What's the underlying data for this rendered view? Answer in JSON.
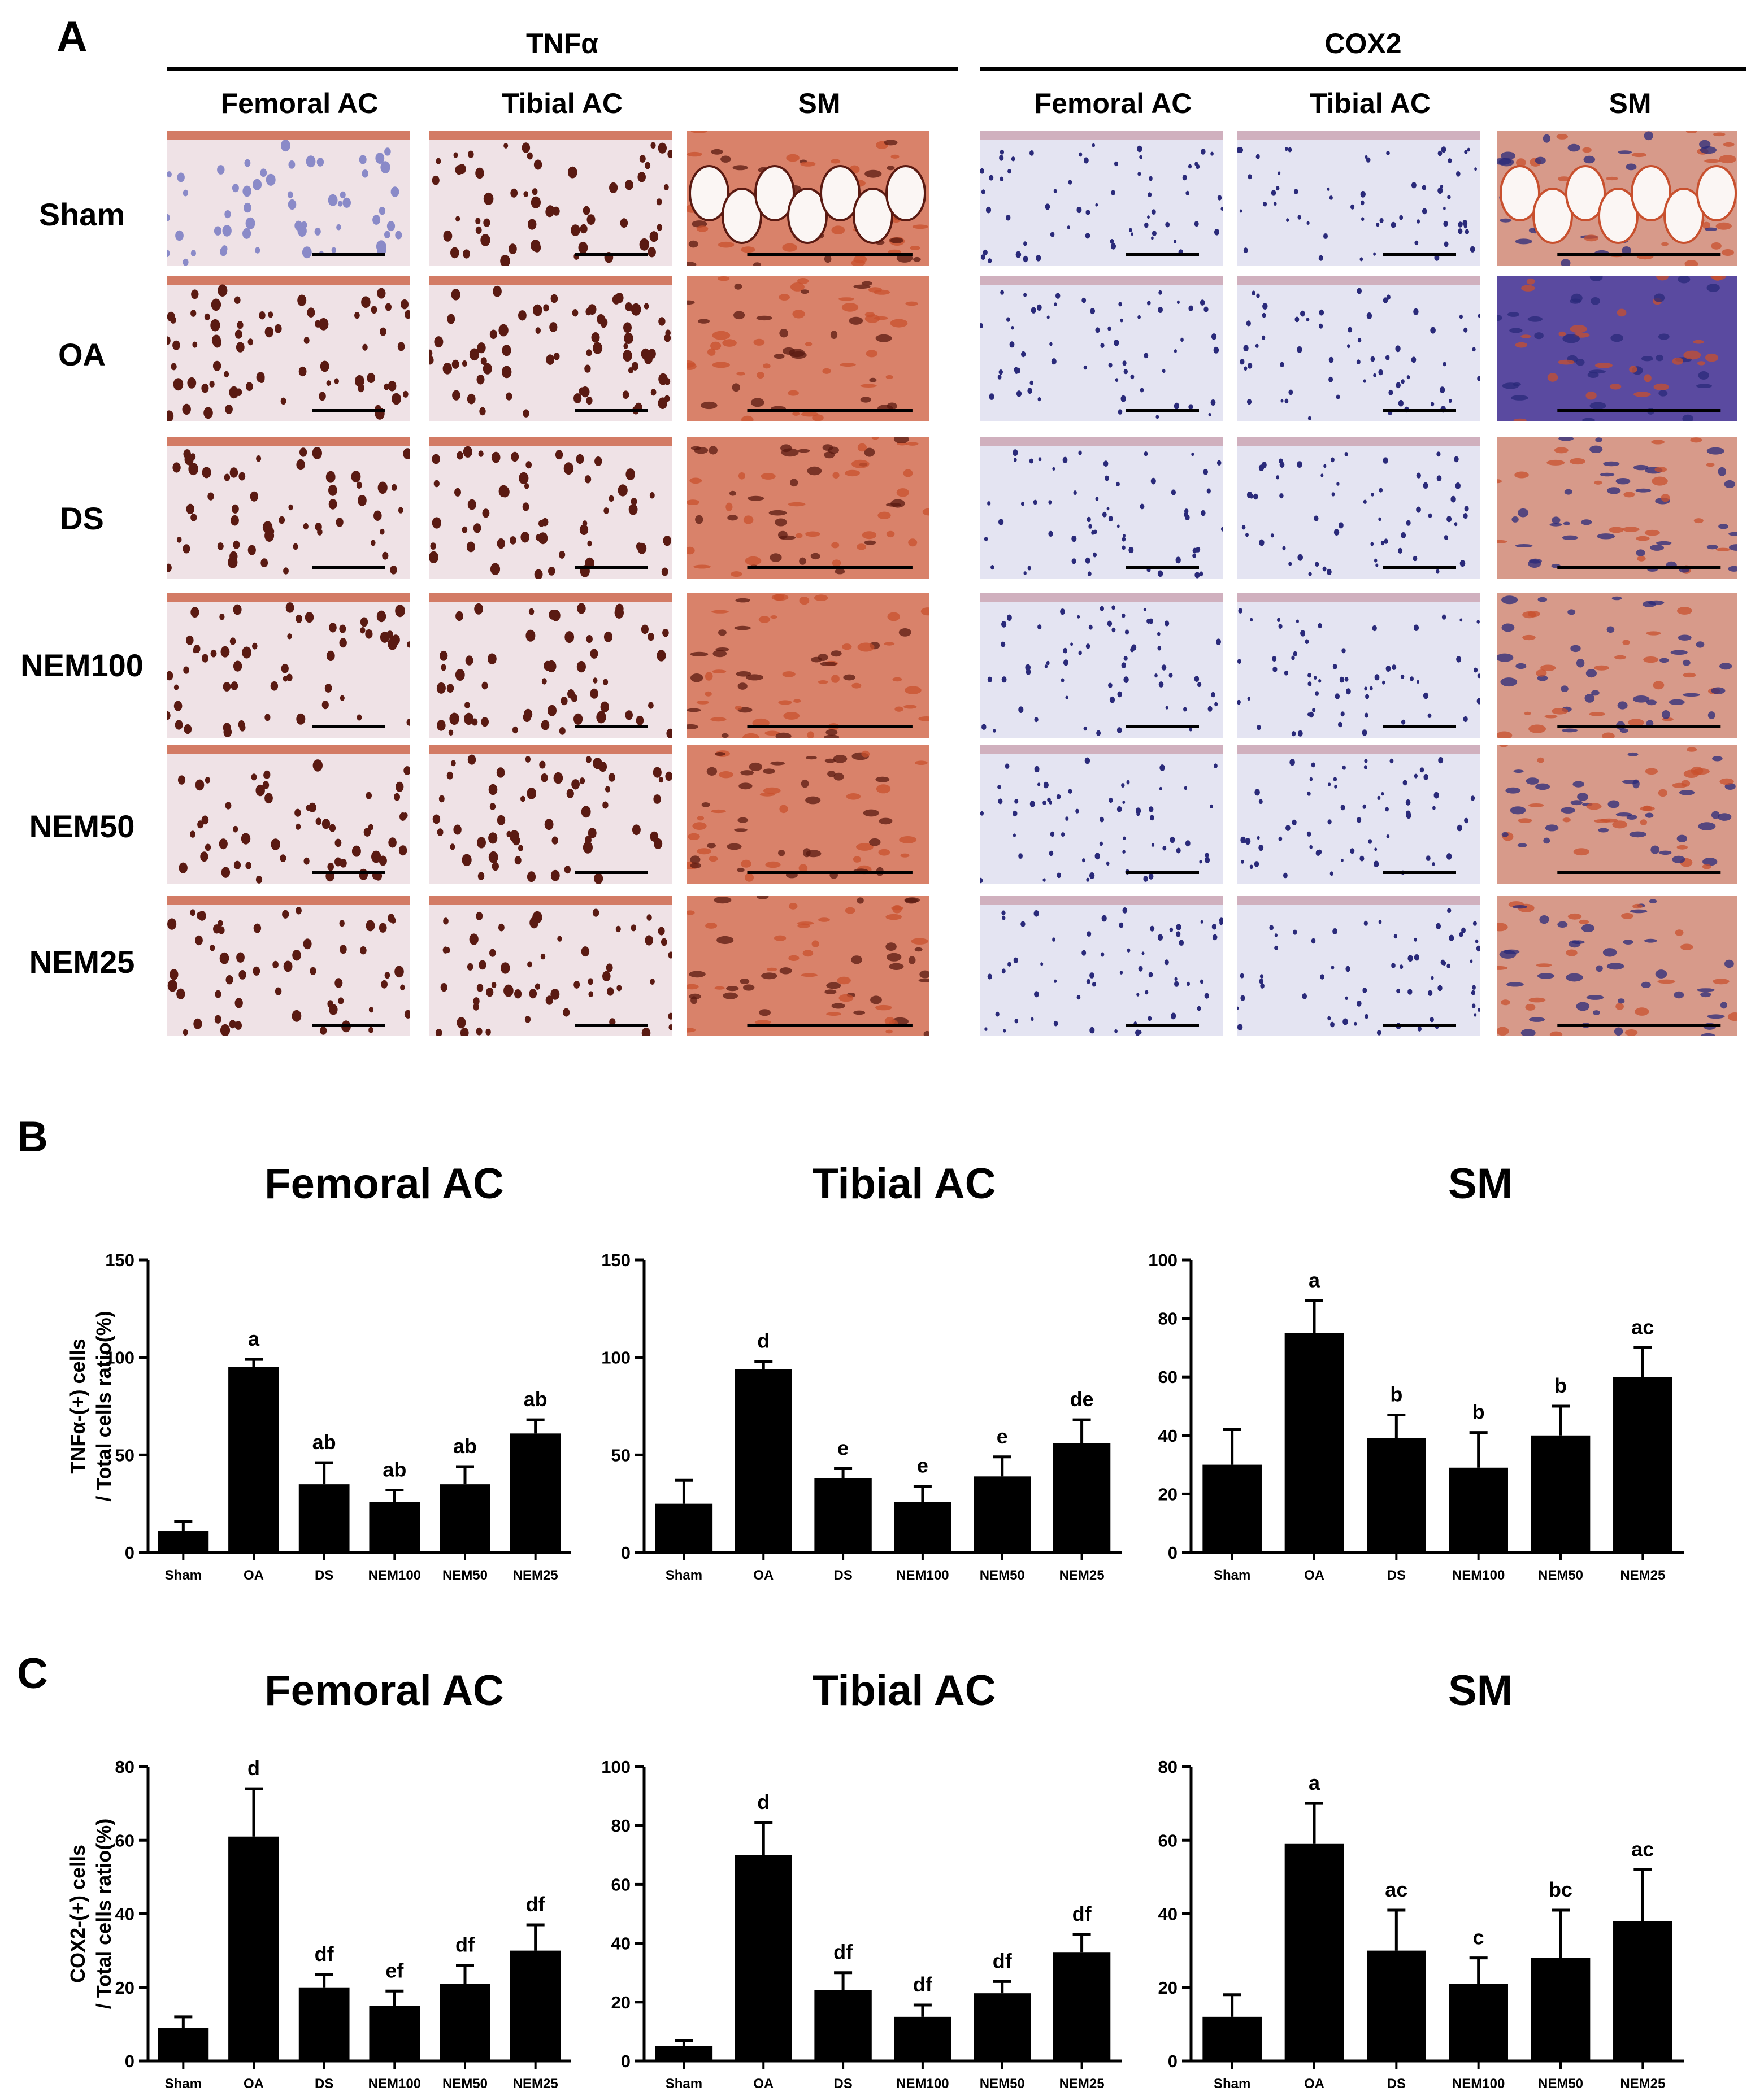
{
  "panels": {
    "A": "A",
    "B": "B",
    "C": "C"
  },
  "panel_a": {
    "markers": [
      "TNFα",
      "COX2"
    ],
    "columns": [
      "Femoral AC",
      "Tibial AC",
      "SM"
    ],
    "rows": [
      "Sham",
      "OA",
      "DS",
      "NEM100",
      "NEM50",
      "NEM25"
    ],
    "stain_colors": {
      "brown": "#5a1a12",
      "red": "#c8502e",
      "pink": "#e8c8c8",
      "blue": "#8a8ac8",
      "navy": "#2a2a7a"
    }
  },
  "chart_data": [
    {
      "id": "B-femoral",
      "type": "bar",
      "title": "Femoral AC",
      "ylabel": "TNFα-(+) cells\n/ Total cells ratio(%)",
      "categories": [
        "Sham",
        "OA",
        "DS",
        "NEM100",
        "NEM50",
        "NEM25"
      ],
      "ylim": [
        0,
        150
      ],
      "yticks": [
        0,
        50,
        100,
        150
      ],
      "values": [
        11,
        95,
        35,
        26,
        35,
        61
      ],
      "errors": [
        5,
        4,
        11,
        6,
        9,
        7
      ],
      "labels": [
        "",
        "a",
        "ab",
        "ab",
        "ab",
        "ab"
      ]
    },
    {
      "id": "B-tibial",
      "type": "bar",
      "title": "Tibial AC",
      "ylabel": "",
      "categories": [
        "Sham",
        "OA",
        "DS",
        "NEM100",
        "NEM50",
        "NEM25"
      ],
      "ylim": [
        0,
        150
      ],
      "yticks": [
        0,
        50,
        100,
        150
      ],
      "values": [
        25,
        94,
        38,
        26,
        39,
        56
      ],
      "errors": [
        12,
        4,
        5,
        8,
        10,
        12
      ],
      "labels": [
        "",
        "d",
        "e",
        "e",
        "e",
        "de"
      ]
    },
    {
      "id": "B-sm",
      "type": "bar",
      "title": "SM",
      "ylabel": "",
      "categories": [
        "Sham",
        "OA",
        "DS",
        "NEM100",
        "NEM50",
        "NEM25"
      ],
      "ylim": [
        0,
        100
      ],
      "yticks": [
        0,
        20,
        40,
        60,
        80,
        100
      ],
      "values": [
        30,
        75,
        39,
        29,
        40,
        60
      ],
      "errors": [
        12,
        11,
        8,
        12,
        10,
        10
      ],
      "labels": [
        "",
        "a",
        "b",
        "b",
        "b",
        "ac"
      ]
    },
    {
      "id": "C-femoral",
      "type": "bar",
      "title": "Femoral AC",
      "ylabel": "COX2-(+) cells\n/ Total cells ratio(%)",
      "categories": [
        "Sham",
        "OA",
        "DS",
        "NEM100",
        "NEM50",
        "NEM25"
      ],
      "ylim": [
        0,
        80
      ],
      "yticks": [
        0,
        20,
        40,
        60,
        80
      ],
      "values": [
        9,
        61,
        20,
        15,
        21,
        30
      ],
      "errors": [
        3,
        13,
        3.5,
        4,
        5,
        7
      ],
      "labels": [
        "",
        "d",
        "df",
        "ef",
        "df",
        "df"
      ]
    },
    {
      "id": "C-tibial",
      "type": "bar",
      "title": "Tibial AC",
      "ylabel": "",
      "categories": [
        "Sham",
        "OA",
        "DS",
        "NEM100",
        "NEM50",
        "NEM25"
      ],
      "ylim": [
        0,
        100
      ],
      "yticks": [
        0,
        20,
        40,
        60,
        80,
        100
      ],
      "values": [
        5,
        70,
        24,
        15,
        23,
        37
      ],
      "errors": [
        2,
        11,
        6,
        4,
        4,
        6
      ],
      "labels": [
        "",
        "d",
        "df",
        "df",
        "df",
        "df"
      ]
    },
    {
      "id": "C-sm",
      "type": "bar",
      "title": "SM",
      "ylabel": "",
      "categories": [
        "Sham",
        "OA",
        "DS",
        "NEM100",
        "NEM50",
        "NEM25"
      ],
      "ylim": [
        0,
        80
      ],
      "yticks": [
        0,
        20,
        40,
        60,
        80
      ],
      "values": [
        12,
        59,
        30,
        21,
        28,
        38
      ],
      "errors": [
        6,
        11,
        11,
        7,
        13,
        14
      ],
      "labels": [
        "",
        "a",
        "ac",
        "c",
        "bc",
        "ac"
      ]
    }
  ]
}
